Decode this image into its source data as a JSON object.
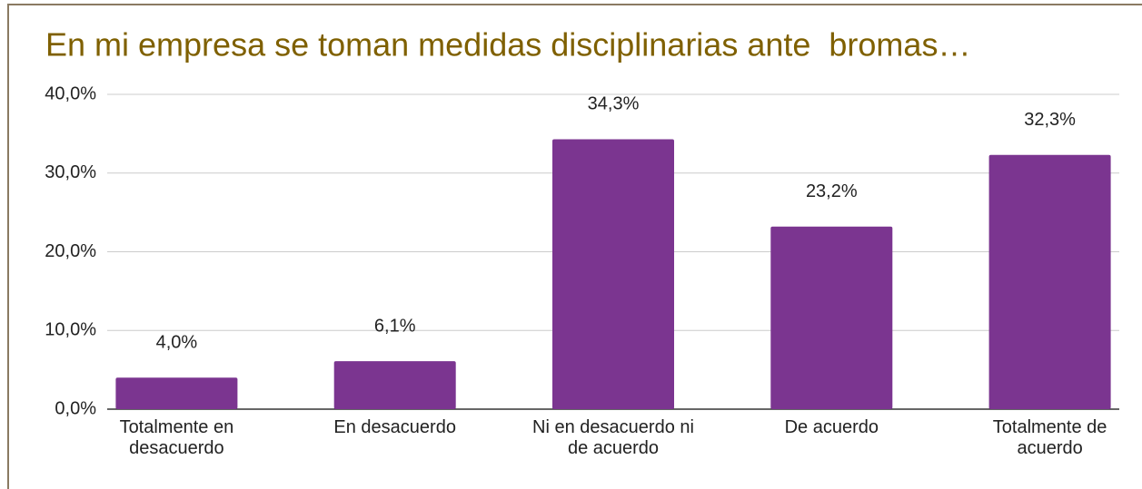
{
  "chart_data": {
    "type": "bar",
    "title": "En mi empresa se toman medidas disciplinarias ante  bromas…",
    "categories": [
      "Totalmente en desacuerdo",
      "En desacuerdo",
      "Ni en desacuerdo ni de acuerdo",
      "De acuerdo",
      "Totalmente de acuerdo"
    ],
    "values": [
      4.0,
      6.1,
      34.3,
      23.2,
      32.3
    ],
    "value_labels": [
      "4,0%",
      "6,1%",
      "34,3%",
      "23,2%",
      "32,3%"
    ],
    "color": "#7b3590",
    "ylim": [
      0,
      40
    ],
    "yticks": [
      {
        "value": 0,
        "label": "0,0%"
      },
      {
        "value": 10,
        "label": "10,0%"
      },
      {
        "value": 20,
        "label": "20,0%"
      },
      {
        "value": 30,
        "label": "30,0%"
      },
      {
        "value": 40,
        "label": "40,0%"
      }
    ],
    "grid": true
  }
}
